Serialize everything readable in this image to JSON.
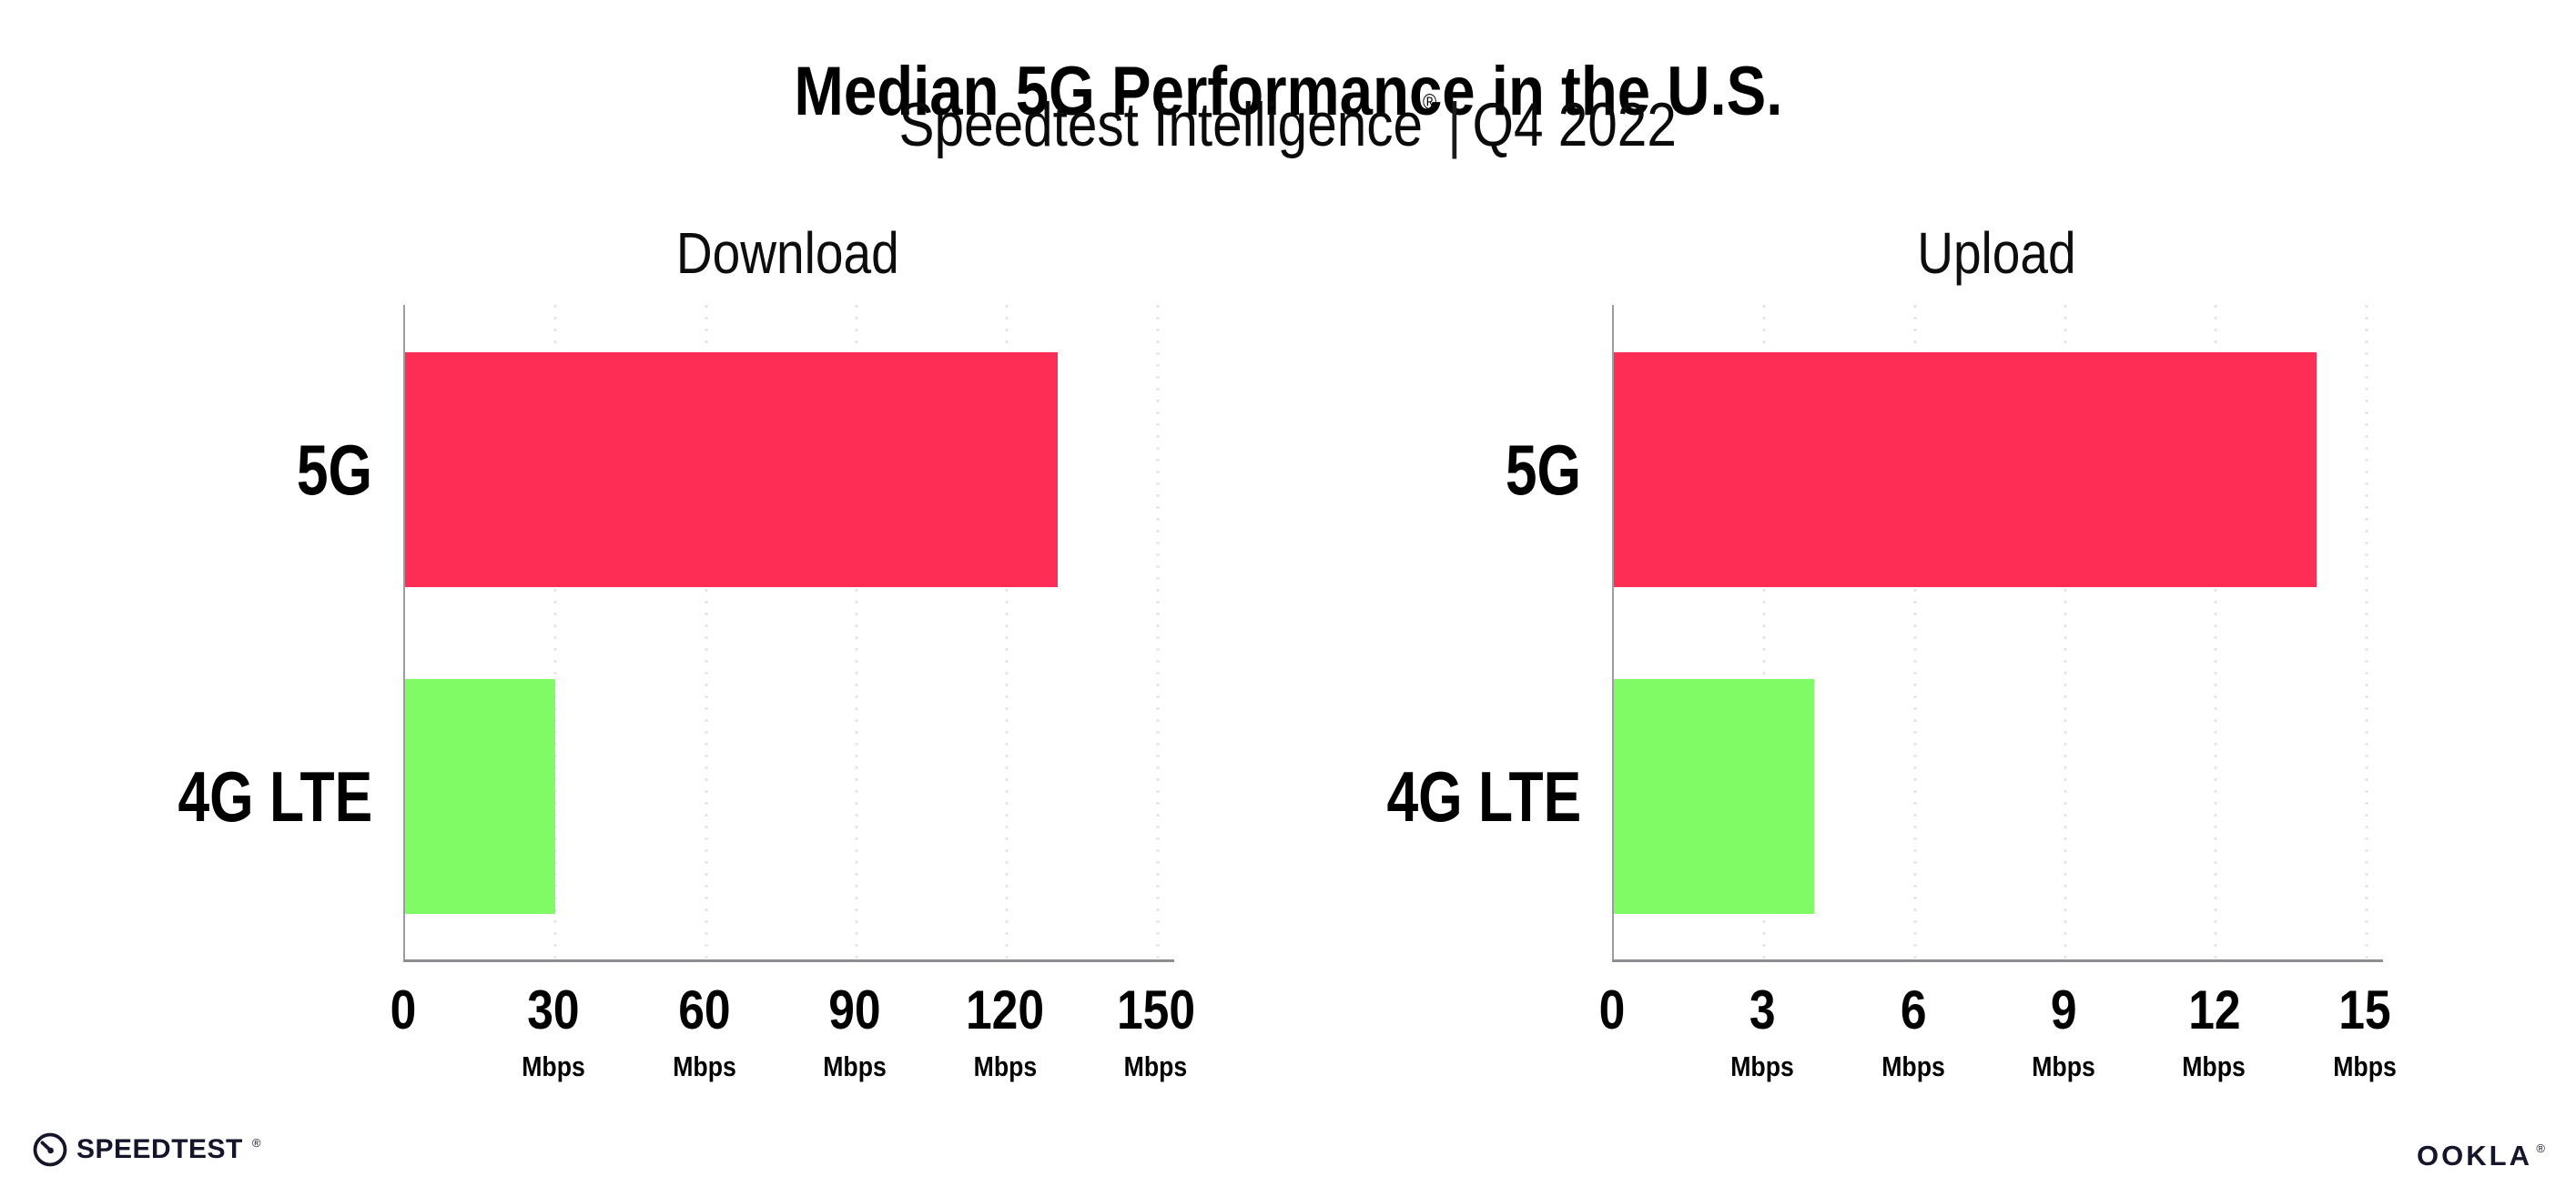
{
  "header": {
    "title": "Median 5G Performance in the U.S.",
    "subtitle_brand": "Speedtest Intelligence",
    "subtitle_registered": "®",
    "subtitle_separator": "|",
    "subtitle_period": "Q4 2022"
  },
  "chart_data": [
    {
      "type": "bar",
      "orientation": "horizontal",
      "title": "Download",
      "categories": [
        "5G",
        "4G LTE"
      ],
      "values": [
        130,
        30
      ],
      "unit": "Mbps",
      "ticks": [
        0,
        30,
        60,
        90,
        120,
        150
      ],
      "xlim": [
        0,
        153.3
      ],
      "bar_colors": [
        "#FE2D56",
        "#7EFB65"
      ],
      "grid": "vertical-dotted",
      "legend": "none"
    },
    {
      "type": "bar",
      "orientation": "horizontal",
      "title": "Upload",
      "categories": [
        "5G",
        "4G LTE"
      ],
      "values": [
        14,
        4
      ],
      "unit": "Mbps",
      "ticks": [
        0,
        3,
        6,
        9,
        12,
        15
      ],
      "xlim": [
        0,
        15.33
      ],
      "bar_colors": [
        "#FE2D56",
        "#7EFB65"
      ],
      "grid": "vertical-dotted",
      "legend": "none"
    }
  ],
  "footer": {
    "speedtest_icon": "gauge-icon",
    "speedtest_label": "SPEEDTEST",
    "speedtest_trademark": "®",
    "ookla_label": "OOKLA",
    "ookla_trademark": "®"
  },
  "colors": {
    "bar_5g": "#FE2D56",
    "bar_4g_lte": "#7EFB65",
    "axis": "#8d8d93",
    "gridline": "#e5e5ed",
    "text": "#000000"
  }
}
